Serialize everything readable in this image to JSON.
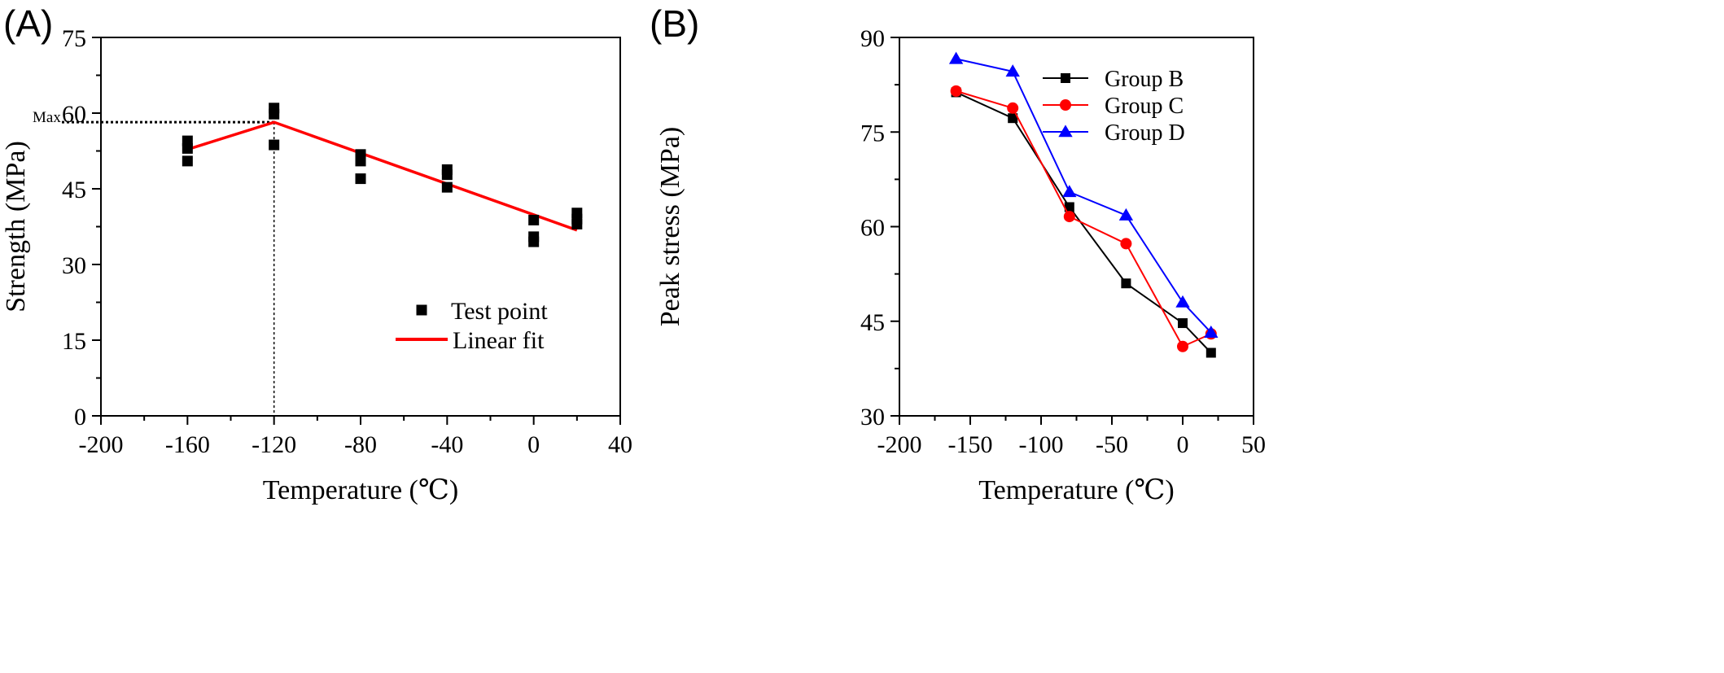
{
  "panels": {
    "a_label": "(A)",
    "b_label": "(B)"
  },
  "chart_data": [
    {
      "type": "scatter",
      "xlabel": "Temperature (℃)",
      "ylabel": "Strength (MPa)",
      "xlim": [
        -200,
        40
      ],
      "ylim": [
        0,
        75
      ],
      "xticks": [
        -200,
        -160,
        -120,
        -80,
        -40,
        0,
        40
      ],
      "yticks": [
        0,
        15,
        30,
        45,
        60,
        75
      ],
      "grid": false,
      "legend_position": "bottom-right",
      "annotation": {
        "label": "Max",
        "x": -120,
        "y": 58.2
      },
      "series": [
        {
          "name": "Test point",
          "marker": "square",
          "color": "#000000",
          "points": [
            [
              -160,
              50.5
            ],
            [
              -160,
              53.0
            ],
            [
              -160,
              54.5
            ],
            [
              -120,
              53.7
            ],
            [
              -120,
              59.8
            ],
            [
              -120,
              61.0
            ],
            [
              -80,
              47.0
            ],
            [
              -80,
              50.5
            ],
            [
              -80,
              51.8
            ],
            [
              -40,
              45.3
            ],
            [
              -40,
              47.8
            ],
            [
              -40,
              48.8
            ],
            [
              0,
              34.5
            ],
            [
              0,
              35.5
            ],
            [
              0,
              38.8
            ],
            [
              20,
              38.0
            ],
            [
              20,
              39.0
            ],
            [
              20,
              40.2
            ]
          ]
        },
        {
          "name": "Linear fit",
          "line": true,
          "color": "#ff0000",
          "points": [
            [
              -160,
              52.8
            ],
            [
              -120,
              58.2
            ],
            [
              20,
              36.8
            ]
          ]
        }
      ]
    },
    {
      "type": "line",
      "xlabel": "Temperature (℃)",
      "ylabel": "Peak stress (MPa)",
      "xlim": [
        -200,
        50
      ],
      "ylim": [
        30,
        90
      ],
      "xticks": [
        -200,
        -150,
        -100,
        -50,
        0,
        50
      ],
      "yticks": [
        30,
        45,
        60,
        75,
        90
      ],
      "grid": false,
      "legend_position": "top-right",
      "x": [
        -160,
        -120,
        -80,
        -40,
        0,
        20
      ],
      "series": [
        {
          "name": "Group B",
          "marker": "square",
          "color": "#000000",
          "values": [
            81.3,
            77.2,
            63.1,
            51.0,
            44.7,
            40.0
          ]
        },
        {
          "name": "Group C",
          "marker": "circle",
          "color": "#ff0000",
          "values": [
            81.5,
            78.8,
            61.6,
            57.3,
            41.0,
            43.0
          ]
        },
        {
          "name": "Group D",
          "marker": "triangle",
          "color": "#0000ff",
          "values": [
            86.6,
            84.6,
            65.5,
            61.8,
            48.0,
            43.2
          ]
        }
      ]
    }
  ]
}
